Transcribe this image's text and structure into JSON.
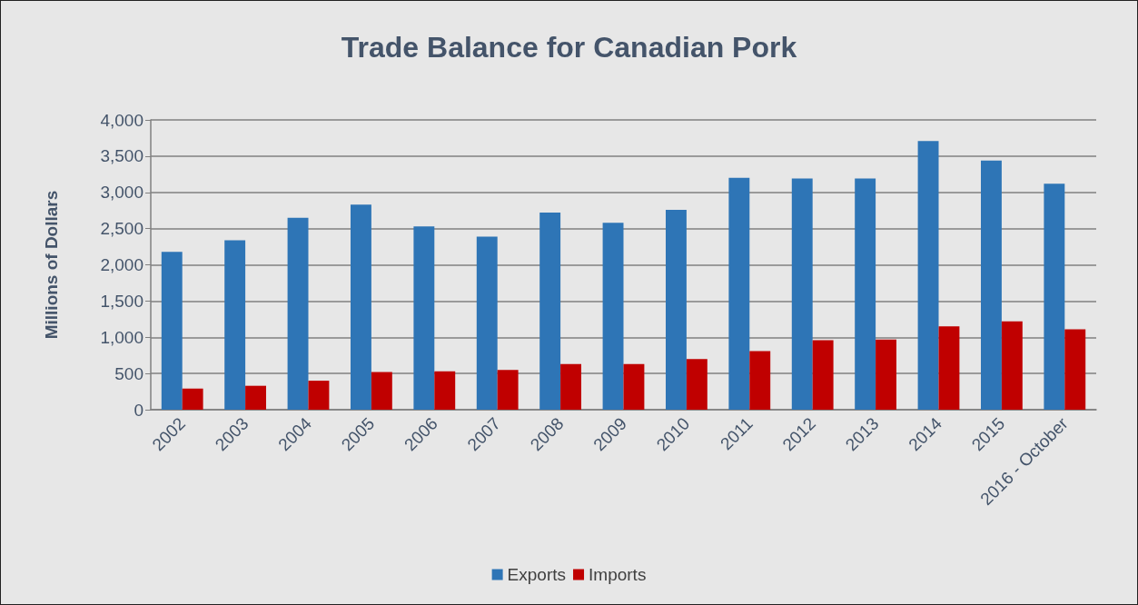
{
  "chart_data": {
    "type": "bar",
    "title": "Trade Balance for Canadian Pork",
    "ylabel": "Millions of Dollars",
    "categories": [
      "2002",
      "2003",
      "2004",
      "2005",
      "2006",
      "2007",
      "2008",
      "2009",
      "2010",
      "2011",
      "2012",
      "2013",
      "2014",
      "2015",
      "2016 - October"
    ],
    "series": [
      {
        "name": "Exports",
        "color": "#2e75b6",
        "values": [
          2180,
          2340,
          2650,
          2830,
          2530,
          2390,
          2720,
          2580,
          2760,
          3200,
          3190,
          3190,
          3710,
          3440,
          3120
        ]
      },
      {
        "name": "Imports",
        "color": "#c00000",
        "values": [
          290,
          330,
          400,
          520,
          530,
          550,
          630,
          630,
          700,
          810,
          960,
          970,
          1150,
          1220,
          1110
        ]
      }
    ],
    "ylim": [
      0,
      4000
    ],
    "yticks": [
      0,
      500,
      {
        "value": 1000,
        "label": "1,000"
      },
      {
        "value": 1500,
        "label": "1,500"
      },
      {
        "value": 2000,
        "label": "2,000"
      },
      {
        "value": 2500,
        "label": "2,500"
      },
      {
        "value": 3000,
        "label": "3,000"
      },
      {
        "value": 3500,
        "label": "3,500"
      },
      {
        "value": 4000,
        "label": "4,000"
      }
    ],
    "grid": "y",
    "legend": "bottom"
  }
}
